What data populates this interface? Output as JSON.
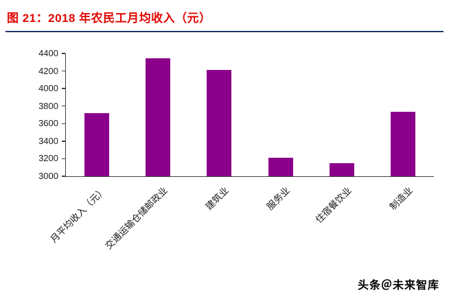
{
  "header": {
    "title": "图 21：2018 年农民工月均收入（元）",
    "title_color": "#e10600",
    "divider_color": "#1f3864"
  },
  "footer": {
    "brand": "头条＠未来智库"
  },
  "chart_data": {
    "type": "bar",
    "title": "2018 年农民工月均收入（元）",
    "categories": [
      "月平均收入（元）",
      "交通运输仓储邮政业",
      "建筑业",
      "服务业",
      "住宿餐饮业",
      "制造业"
    ],
    "values": [
      3721,
      4345,
      4209,
      3210,
      3150,
      3732
    ],
    "xlabel": "",
    "ylabel": "",
    "ylim": [
      3000,
      4400
    ],
    "yticks": [
      3000,
      3200,
      3400,
      3600,
      3800,
      4000,
      4200,
      4400
    ],
    "bar_color": "#8B008B",
    "grid": false,
    "legend_position": "none"
  }
}
